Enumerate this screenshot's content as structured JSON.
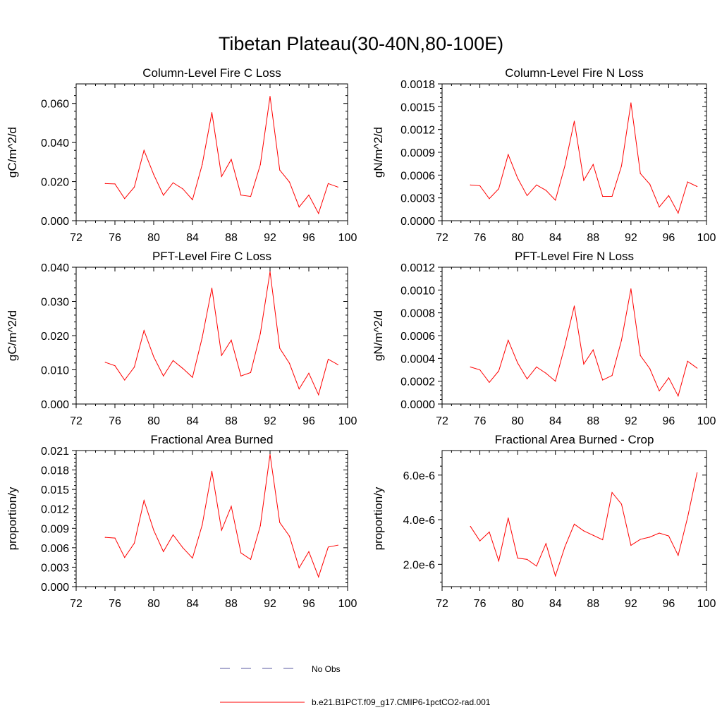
{
  "figure": {
    "title": "Tibetan Plateau(30-40N,80-100E)",
    "colors": {
      "model_line": "#ff0000",
      "obs_line": "#5a5aa0",
      "frame": "#000000"
    }
  },
  "legend": {
    "placement": "bottom-center",
    "entries": [
      {
        "label": "No Obs",
        "style": "dashed",
        "color": "#5a5aa0"
      },
      {
        "label": "b.e21.B1PCT.f09_g17.CMIP6-1pctCO2-rad.001",
        "style": "solid",
        "color": "#ff0000"
      }
    ]
  },
  "chart_data": [
    {
      "type": "line",
      "title": "Column-Level Fire C Loss",
      "xlabel": "",
      "ylabel": "gC/m^2/d",
      "xlim": [
        72,
        100
      ],
      "ylim": [
        0,
        0.07
      ],
      "xticks": [
        72,
        76,
        80,
        84,
        88,
        92,
        96,
        100
      ],
      "xticklabels": [
        "72",
        "76",
        "80",
        "84",
        "88",
        "92",
        "96",
        "100"
      ],
      "yticks": [
        0,
        0.02,
        0.04,
        0.06
      ],
      "yticklabels": [
        "0.000",
        "0.020",
        "0.040",
        "0.060"
      ],
      "x": [
        75,
        76,
        77,
        78,
        79,
        80,
        81,
        82,
        83,
        84,
        85,
        86,
        87,
        88,
        89,
        90,
        91,
        92,
        93,
        94,
        95,
        96,
        97,
        98,
        99
      ],
      "series": [
        {
          "name": "b.e21.B1PCT.f09_g17.CMIP6-1pctCO2-rad.001",
          "color": "#ff0000",
          "values": [
            0.019,
            0.0188,
            0.0113,
            0.0172,
            0.036,
            0.0236,
            0.013,
            0.0194,
            0.0163,
            0.0107,
            0.0287,
            0.0553,
            0.0226,
            0.0314,
            0.0131,
            0.0124,
            0.0287,
            0.0636,
            0.0259,
            0.0198,
            0.007,
            0.0131,
            0.0037,
            0.019,
            0.0172
          ]
        }
      ]
    },
    {
      "type": "line",
      "title": "Column-Level Fire N Loss",
      "xlabel": "",
      "ylabel": "gN/m^2/d",
      "xlim": [
        72,
        100
      ],
      "ylim": [
        0,
        0.0018
      ],
      "xticks": [
        72,
        76,
        80,
        84,
        88,
        92,
        96,
        100
      ],
      "xticklabels": [
        "72",
        "76",
        "80",
        "84",
        "88",
        "92",
        "96",
        "100"
      ],
      "yticks": [
        0,
        0.0003,
        0.0006,
        0.0009,
        0.0012,
        0.0015,
        0.0018
      ],
      "yticklabels": [
        "0.0000",
        "0.0003",
        "0.0006",
        "0.0009",
        "0.0012",
        "0.0015",
        "0.0018"
      ],
      "x": [
        75,
        76,
        77,
        78,
        79,
        80,
        81,
        82,
        83,
        84,
        85,
        86,
        87,
        88,
        89,
        90,
        91,
        92,
        93,
        94,
        95,
        96,
        97,
        98,
        99
      ],
      "series": [
        {
          "name": "b.e21.B1PCT.f09_g17.CMIP6-1pctCO2-rad.001",
          "color": "#ff0000",
          "values": [
            0.00047,
            0.00046,
            0.00029,
            0.00042,
            0.00087,
            0.00056,
            0.00033,
            0.00047,
            0.0004,
            0.00027,
            0.00072,
            0.00131,
            0.00053,
            0.00074,
            0.00032,
            0.00032,
            0.00072,
            0.00155,
            0.00062,
            0.00048,
            0.00018,
            0.00033,
            0.0001,
            0.00051,
            0.00045
          ]
        }
      ]
    },
    {
      "type": "line",
      "title": "PFT-Level Fire C Loss",
      "xlabel": "",
      "ylabel": "gC/m^2/d",
      "xlim": [
        72,
        100
      ],
      "ylim": [
        0,
        0.04
      ],
      "xticks": [
        72,
        76,
        80,
        84,
        88,
        92,
        96,
        100
      ],
      "xticklabels": [
        "72",
        "76",
        "80",
        "84",
        "88",
        "92",
        "96",
        "100"
      ],
      "yticks": [
        0,
        0.01,
        0.02,
        0.03,
        0.04
      ],
      "yticklabels": [
        "0.000",
        "0.010",
        "0.020",
        "0.030",
        "0.040"
      ],
      "x": [
        75,
        76,
        77,
        78,
        79,
        80,
        81,
        82,
        83,
        84,
        85,
        86,
        87,
        88,
        89,
        90,
        91,
        92,
        93,
        94,
        95,
        96,
        97,
        98,
        99
      ],
      "series": [
        {
          "name": "b.e21.B1PCT.f09_g17.CMIP6-1pctCO2-rad.001",
          "color": "#ff0000",
          "values": [
            0.0122,
            0.0112,
            0.007,
            0.0108,
            0.0215,
            0.0138,
            0.0082,
            0.0127,
            0.0104,
            0.0078,
            0.0194,
            0.0339,
            0.0142,
            0.0187,
            0.0082,
            0.0092,
            0.0206,
            0.0387,
            0.0163,
            0.0119,
            0.0044,
            0.009,
            0.0027,
            0.0131,
            0.0115
          ]
        }
      ]
    },
    {
      "type": "line",
      "title": "PFT-Level Fire N Loss",
      "xlabel": "",
      "ylabel": "gN/m^2/d",
      "xlim": [
        72,
        100
      ],
      "ylim": [
        0,
        0.0012
      ],
      "xticks": [
        72,
        76,
        80,
        84,
        88,
        92,
        96,
        100
      ],
      "xticklabels": [
        "72",
        "76",
        "80",
        "84",
        "88",
        "92",
        "96",
        "100"
      ],
      "yticks": [
        0,
        0.0002,
        0.0004,
        0.0006,
        0.0008,
        0.001,
        0.0012
      ],
      "yticklabels": [
        "0.0000",
        "0.0002",
        "0.0004",
        "0.0006",
        "0.0008",
        "0.0010",
        "0.0012"
      ],
      "x": [
        75,
        76,
        77,
        78,
        79,
        80,
        81,
        82,
        83,
        84,
        85,
        86,
        87,
        88,
        89,
        90,
        91,
        92,
        93,
        94,
        95,
        96,
        97,
        98,
        99
      ],
      "series": [
        {
          "name": "b.e21.B1PCT.f09_g17.CMIP6-1pctCO2-rad.001",
          "color": "#ff0000",
          "values": [
            0.000325,
            0.0003,
            0.00019,
            0.00029,
            0.00056,
            0.00036,
            0.00022,
            0.000325,
            0.00027,
            0.0002,
            0.00051,
            0.00086,
            0.00035,
            0.000475,
            0.00021,
            0.00025,
            0.00056,
            0.00101,
            0.000425,
            0.00031,
            0.000115,
            0.00023,
            7e-05,
            0.000375,
            0.000315
          ]
        }
      ]
    },
    {
      "type": "line",
      "title": "Fractional Area Burned",
      "xlabel": "",
      "ylabel": "proportion/y",
      "xlim": [
        72,
        100
      ],
      "ylim": [
        0,
        0.021
      ],
      "xticks": [
        72,
        76,
        80,
        84,
        88,
        92,
        96,
        100
      ],
      "xticklabels": [
        "72",
        "76",
        "80",
        "84",
        "88",
        "92",
        "96",
        "100"
      ],
      "yticks": [
        0,
        0.003,
        0.006,
        0.009,
        0.012,
        0.015,
        0.018,
        0.021
      ],
      "yticklabels": [
        "0.000",
        "0.003",
        "0.006",
        "0.009",
        "0.012",
        "0.015",
        "0.018",
        "0.021"
      ],
      "x": [
        75,
        76,
        77,
        78,
        79,
        80,
        81,
        82,
        83,
        84,
        85,
        86,
        87,
        88,
        89,
        90,
        91,
        92,
        93,
        94,
        95,
        96,
        97,
        98,
        99
      ],
      "series": [
        {
          "name": "b.e21.B1PCT.f09_g17.CMIP6-1pctCO2-rad.001",
          "color": "#ff0000",
          "values": [
            0.0076,
            0.0075,
            0.0045,
            0.0067,
            0.0133,
            0.0087,
            0.0054,
            0.008,
            0.006,
            0.0044,
            0.0095,
            0.0178,
            0.0087,
            0.0124,
            0.0052,
            0.0042,
            0.0094,
            0.0204,
            0.0099,
            0.0078,
            0.0029,
            0.0054,
            0.0015,
            0.0061,
            0.0064
          ]
        }
      ]
    },
    {
      "type": "line",
      "title": "Fractional Area Burned - Crop",
      "xlabel": "",
      "ylabel": "proportion/y",
      "xlim": [
        72,
        100
      ],
      "ylim": [
        1e-06,
        7.1e-06
      ],
      "xticks": [
        72,
        76,
        80,
        84,
        88,
        92,
        96,
        100
      ],
      "xticklabels": [
        "72",
        "76",
        "80",
        "84",
        "88",
        "92",
        "96",
        "100"
      ],
      "yticks": [
        2e-06,
        4e-06,
        6e-06
      ],
      "yticklabels": [
        "2.0e-6",
        "4.0e-6",
        "6.0e-6"
      ],
      "x": [
        75,
        76,
        77,
        78,
        79,
        80,
        81,
        82,
        83,
        84,
        85,
        86,
        87,
        88,
        89,
        90,
        91,
        92,
        93,
        94,
        95,
        96,
        97,
        98,
        99
      ],
      "series": [
        {
          "name": "b.e21.B1PCT.f09_g17.CMIP6-1pctCO2-rad.001",
          "color": "#ff0000",
          "values": [
            3.7e-06,
            3.05e-06,
            3.45e-06,
            2.15e-06,
            4.08e-06,
            2.28e-06,
            2.22e-06,
            1.92e-06,
            2.93e-06,
            1.48e-06,
            2.78e-06,
            3.8e-06,
            3.5e-06,
            3.3e-06,
            3.1e-06,
            5.22e-06,
            4.7e-06,
            2.85e-06,
            3.12e-06,
            3.22e-06,
            3.4e-06,
            3.27e-06,
            2.4e-06,
            4.1e-06,
            6.1e-06
          ]
        }
      ]
    }
  ]
}
